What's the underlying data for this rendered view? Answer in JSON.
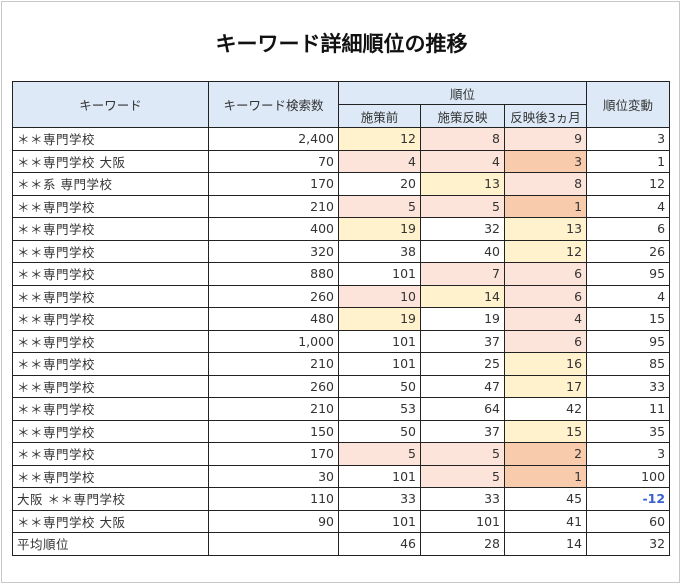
{
  "title": "キーワード詳細順位の推移",
  "headers": {
    "keyword": "キーワード",
    "volume": "キーワード検索数",
    "rank_group": "順位",
    "before": "施策前",
    "reflected": "施策反映",
    "after3": "反映後3ヵ月",
    "change": "順位変動"
  },
  "colors": {
    "yellow": "#fff2cc",
    "pink": "#fde4da",
    "orange": "#f8cbad",
    "header_bg": "#dde9f7",
    "negative": "#3b5fcc"
  },
  "rows": [
    {
      "keyword": "＊＊専門学校",
      "volume": "2,400",
      "before": "12",
      "reflected": "8",
      "after3": "9",
      "change": "3",
      "hl": [
        "yellow",
        "pink",
        "pink"
      ]
    },
    {
      "keyword": "＊＊専門学校 大阪",
      "volume": "70",
      "before": "4",
      "reflected": "4",
      "after3": "3",
      "change": "1",
      "hl": [
        "pink",
        "pink",
        "orange"
      ]
    },
    {
      "keyword": "＊＊系 専門学校",
      "volume": "170",
      "before": "20",
      "reflected": "13",
      "after3": "8",
      "change": "12",
      "hl": [
        "",
        "yellow",
        "pink"
      ]
    },
    {
      "keyword": "＊＊専門学校",
      "volume": "210",
      "before": "5",
      "reflected": "5",
      "after3": "1",
      "change": "4",
      "hl": [
        "pink",
        "pink",
        "orange"
      ]
    },
    {
      "keyword": "＊＊専門学校",
      "volume": "400",
      "before": "19",
      "reflected": "32",
      "after3": "13",
      "change": "6",
      "hl": [
        "yellow",
        "",
        "yellow"
      ]
    },
    {
      "keyword": "＊＊専門学校",
      "volume": "320",
      "before": "38",
      "reflected": "40",
      "after3": "12",
      "change": "26",
      "hl": [
        "",
        "",
        "yellow"
      ]
    },
    {
      "keyword": "＊＊専門学校",
      "volume": "880",
      "before": "101",
      "reflected": "7",
      "after3": "6",
      "change": "95",
      "hl": [
        "",
        "pink",
        "pink"
      ]
    },
    {
      "keyword": "＊＊専門学校",
      "volume": "260",
      "before": "10",
      "reflected": "14",
      "after3": "6",
      "change": "4",
      "hl": [
        "pink",
        "yellow",
        "pink"
      ]
    },
    {
      "keyword": "＊＊専門学校",
      "volume": "480",
      "before": "19",
      "reflected": "19",
      "after3": "4",
      "change": "15",
      "hl": [
        "yellow",
        "",
        "pink"
      ]
    },
    {
      "keyword": "＊＊専門学校",
      "volume": "1,000",
      "before": "101",
      "reflected": "37",
      "after3": "6",
      "change": "95",
      "hl": [
        "",
        "",
        "pink"
      ]
    },
    {
      "keyword": "＊＊専門学校",
      "volume": "210",
      "before": "101",
      "reflected": "25",
      "after3": "16",
      "change": "85",
      "hl": [
        "",
        "",
        "yellow"
      ]
    },
    {
      "keyword": "＊＊専門学校",
      "volume": "260",
      "before": "50",
      "reflected": "47",
      "after3": "17",
      "change": "33",
      "hl": [
        "",
        "",
        "yellow"
      ]
    },
    {
      "keyword": "＊＊専門学校",
      "volume": "210",
      "before": "53",
      "reflected": "64",
      "after3": "42",
      "change": "11",
      "hl": [
        "",
        "",
        ""
      ]
    },
    {
      "keyword": "＊＊専門学校",
      "volume": "150",
      "before": "50",
      "reflected": "37",
      "after3": "15",
      "change": "35",
      "hl": [
        "",
        "",
        "yellow"
      ]
    },
    {
      "keyword": "＊＊専門学校",
      "volume": "170",
      "before": "5",
      "reflected": "5",
      "after3": "2",
      "change": "3",
      "hl": [
        "pink",
        "pink",
        "orange"
      ]
    },
    {
      "keyword": "＊＊専門学校",
      "volume": "30",
      "before": "101",
      "reflected": "5",
      "after3": "1",
      "change": "100",
      "hl": [
        "",
        "pink",
        "orange"
      ]
    },
    {
      "keyword": "大阪 ＊＊専門学校",
      "volume": "110",
      "before": "33",
      "reflected": "33",
      "after3": "45",
      "change": "-12",
      "hl": [
        "",
        "",
        ""
      ],
      "negative": true
    },
    {
      "keyword": "＊＊専門学校 大阪",
      "volume": "90",
      "before": "101",
      "reflected": "101",
      "after3": "41",
      "change": "60",
      "hl": [
        "",
        "",
        ""
      ]
    }
  ],
  "average": {
    "label": "平均順位",
    "volume": "",
    "before": "46",
    "reflected": "28",
    "after3": "14",
    "change": "32"
  }
}
